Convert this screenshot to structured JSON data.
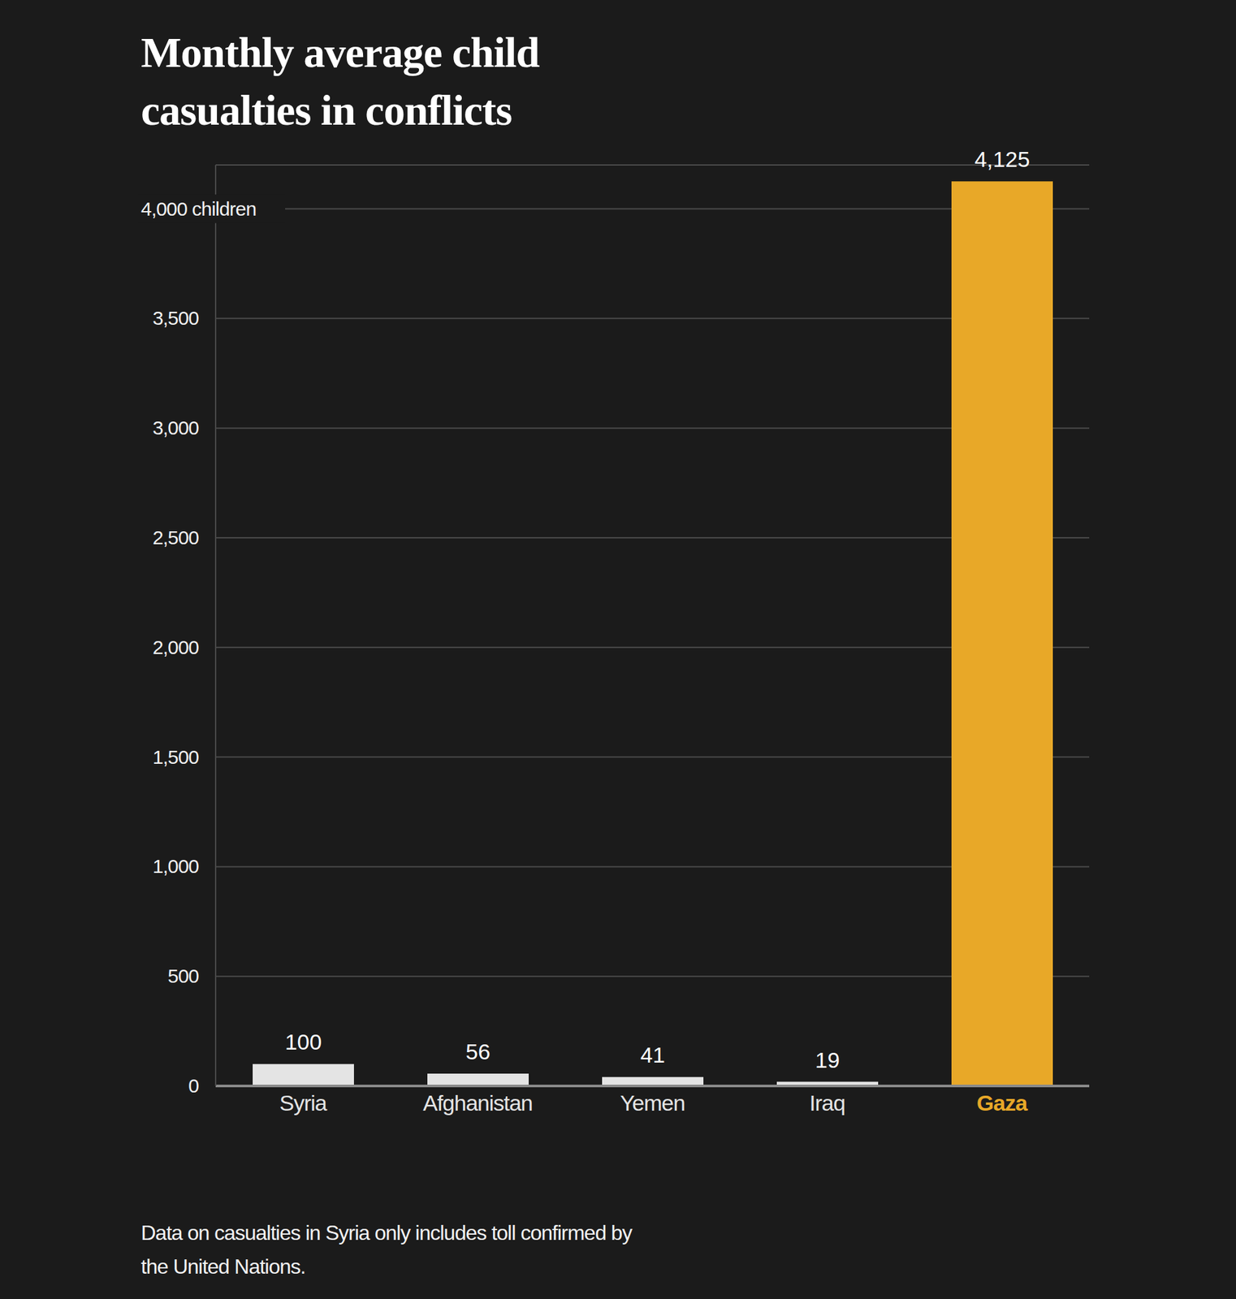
{
  "chart_data": {
    "type": "bar",
    "title": "Monthly average child casualties in conflicts",
    "categories": [
      "Syria",
      "Afghanistan",
      "Yemen",
      "Iraq",
      "Gaza"
    ],
    "values": [
      100,
      56,
      41,
      19,
      4125
    ],
    "value_labels": [
      "100",
      "56",
      "41",
      "19",
      "4,125"
    ],
    "colors": [
      "#e4e4e4",
      "#e4e4e4",
      "#e4e4e4",
      "#e4e4e4",
      "#e8a828"
    ],
    "ylim": [
      0,
      4200
    ],
    "yticks": [
      0,
      500,
      {
        "value": 1000,
        "label": "1,000"
      },
      {
        "value": 1500,
        "label": "1,500"
      },
      {
        "value": 2000,
        "label": "2,000"
      },
      {
        "value": 2500,
        "label": "2,500"
      },
      {
        "value": 3000,
        "label": "3,000"
      },
      {
        "value": 3500,
        "label": "3,500"
      },
      {
        "value": 4000,
        "label": "4,000 children"
      }
    ],
    "grid": true,
    "data_labels": true,
    "annotations": [
      "Data on casualties in Syria only includes toll confirmed by the United Nations."
    ]
  }
}
